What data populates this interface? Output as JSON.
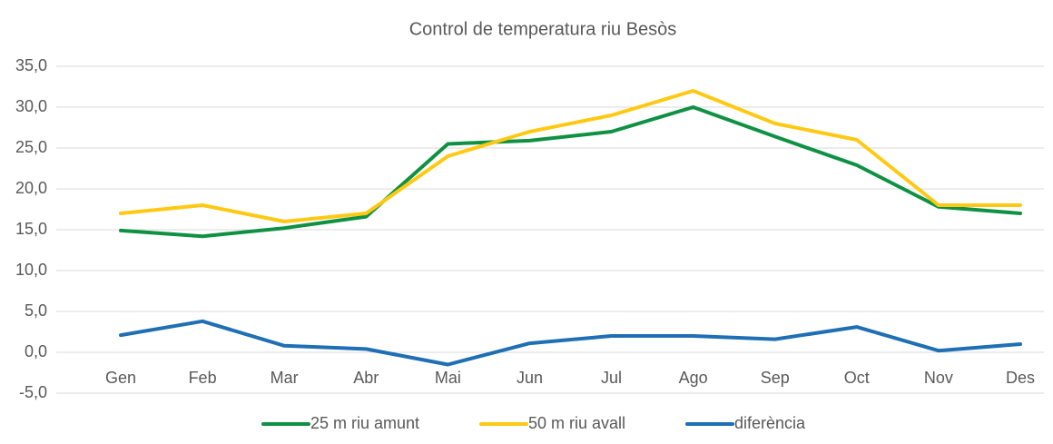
{
  "chart_data": {
    "type": "line",
    "title": "Control de temperatura riu Besòs",
    "categories": [
      "Gen",
      "Feb",
      "Mar",
      "Abr",
      "Mai",
      "Jun",
      "Jul",
      "Ago",
      "Sep",
      "Oct",
      "Nov",
      "Des"
    ],
    "series": [
      {
        "name": "25 m riu amunt",
        "color": "#0f9143",
        "values": [
          14.9,
          14.2,
          15.2,
          16.6,
          25.5,
          25.9,
          27.0,
          30.0,
          26.4,
          22.9,
          17.8,
          17.0
        ]
      },
      {
        "name": "50 m riu avall",
        "color": "#ffc913",
        "values": [
          17.0,
          18.0,
          16.0,
          17.0,
          24.0,
          27.0,
          29.0,
          32.0,
          28.0,
          26.0,
          18.0,
          18.0
        ]
      },
      {
        "name": "diferència",
        "color": "#1f6fb4",
        "values": [
          2.1,
          3.8,
          0.8,
          0.4,
          -1.5,
          1.1,
          2.0,
          2.0,
          1.6,
          3.1,
          0.2,
          1.0
        ]
      }
    ],
    "ylim": [
      -5,
      35
    ],
    "yticks": [
      {
        "value": -5,
        "label": "-5,0"
      },
      {
        "value": 0,
        "label": "0,0"
      },
      {
        "value": 5,
        "label": "5,0"
      },
      {
        "value": 10,
        "label": "10,0"
      },
      {
        "value": 15,
        "label": "15,0"
      },
      {
        "value": 20,
        "label": "20,0"
      },
      {
        "value": 25,
        "label": "25,0"
      },
      {
        "value": 30,
        "label": "30,0"
      },
      {
        "value": 35,
        "label": "35,0"
      }
    ],
    "grid": true,
    "legend": "bottom"
  }
}
